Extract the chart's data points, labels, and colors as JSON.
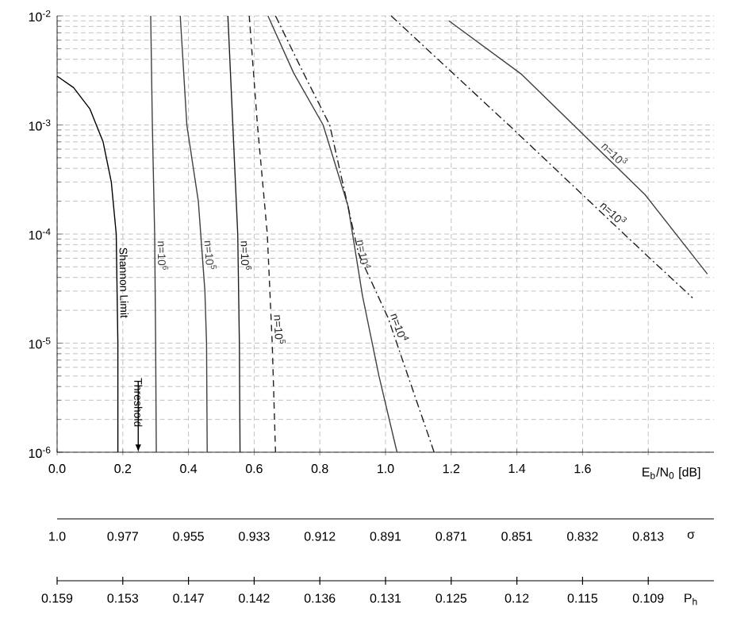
{
  "chart_data": {
    "type": "line",
    "xlabel": "E$_{b}$/N$_{0}$ [dB]",
    "xlim": [
      0,
      2.0
    ],
    "xticks": [
      {
        "value": 0,
        "label": "0.0"
      },
      {
        "value": 0.2,
        "label": "0.2"
      },
      {
        "value": 0.4,
        "label": "0.4"
      },
      {
        "value": 0.6,
        "label": "0.6"
      },
      {
        "value": 0.8,
        "label": "0.8"
      },
      {
        "value": 1.0,
        "label": "1.0"
      },
      {
        "value": 1.2,
        "label": "1.2"
      },
      {
        "value": 1.4,
        "label": "1.4"
      },
      {
        "value": 1.6,
        "label": "1.6"
      },
      {
        "value": 1.8,
        "label": null
      }
    ],
    "ylim": [
      1e-06,
      0.01
    ],
    "yticks": [
      {
        "value": 1e-06,
        "label": "10$^{-6}$"
      },
      {
        "value": 1e-05,
        "label": "10$^{-5}$"
      },
      {
        "value": 0.0001,
        "label": "10$^{-4}$"
      },
      {
        "value": 0.001,
        "label": "10$^{-3}$"
      },
      {
        "value": 0.01,
        "label": "10$^{-2}$"
      }
    ],
    "log": "y",
    "grid": true,
    "annotations": [
      "Threshold",
      "1.0",
      "0.977",
      "0.955",
      "0.933",
      "0.912",
      "0.891",
      "0.871",
      "0.851",
      "0.832",
      "0.813",
      "σ",
      "0.159",
      "0.153",
      "0.147",
      "0.142",
      "0.136",
      "0.131",
      "0.125",
      "0.12",
      "0.115",
      "0.109",
      "P$_{h}$"
    ],
    "series": [
      {
        "name": "Shannon Limit",
        "color": "#000000",
        "line_style": "solid",
        "x": [
          0,
          0.05,
          0.1,
          0.14,
          0.165,
          0.18,
          0.185,
          0.185
        ],
        "values": [
          0.0028,
          0.0022,
          0.0014,
          0.0007,
          0.0003,
          0.0001,
          1e-05,
          1e-06
        ]
      },
      {
        "name": "n=10$^{6}$",
        "color": "#404040",
        "line_style": "solid",
        "x": [
          0.285,
          0.29,
          0.297,
          0.3,
          0.302
        ],
        "values": [
          0.01,
          0.001,
          0.0001,
          1e-05,
          1e-06
        ]
      },
      {
        "name": "n=10$^{5}$",
        "color": "#404040",
        "line_style": "solid",
        "x": [
          0.375,
          0.395,
          0.43,
          0.45,
          0.455,
          0.457
        ],
        "values": [
          0.01,
          0.001,
          0.0002,
          3e-05,
          1e-05,
          1e-06
        ]
      },
      {
        "name": "n=10$^{6}$",
        "color": "#202020",
        "line_style": "solid",
        "x": [
          0.52,
          0.535,
          0.55,
          0.555,
          0.557
        ],
        "values": [
          0.01,
          0.001,
          0.0001,
          1e-05,
          1e-06
        ]
      },
      {
        "name": "n=10$^{5}$",
        "color": "#202020",
        "line_style": "dashed",
        "x": [
          0.585,
          0.61,
          0.64,
          0.655,
          0.665
        ],
        "values": [
          0.01,
          0.001,
          0.0001,
          1e-05,
          1e-06
        ]
      },
      {
        "name": "n=10$^{4}$",
        "color": "#404040",
        "line_style": "solid",
        "x": [
          0.642,
          0.72,
          0.81,
          0.886,
          0.93,
          0.98,
          1.035
        ],
        "values": [
          0.01,
          0.003,
          0.001,
          0.00018,
          2.7e-05,
          5e-06,
          1e-06
        ]
      },
      {
        "name": "n=10$^{4}$",
        "color": "#202020",
        "line_style": "dashdot",
        "x": [
          0.665,
          0.75,
          0.83,
          0.918,
          1.008,
          1.148
        ],
        "values": [
          0.01,
          0.003,
          0.001,
          6.6e-05,
          1.7e-05,
          1e-06
        ]
      },
      {
        "name": "n=10$^{3}$",
        "color": "#202020",
        "line_style": "dashdot",
        "x": [
          1.017,
          1.383,
          1.79,
          1.935
        ],
        "values": [
          0.01,
          0.00095,
          6.6e-05,
          2.6e-05
        ]
      },
      {
        "name": "n=10$^{3}$",
        "color": "#404040",
        "line_style": "solid",
        "x": [
          1.193,
          1.415,
          1.79,
          1.98
        ],
        "values": [
          0.009,
          0.0029,
          0.00023,
          4.3e-05
        ]
      }
    ]
  }
}
